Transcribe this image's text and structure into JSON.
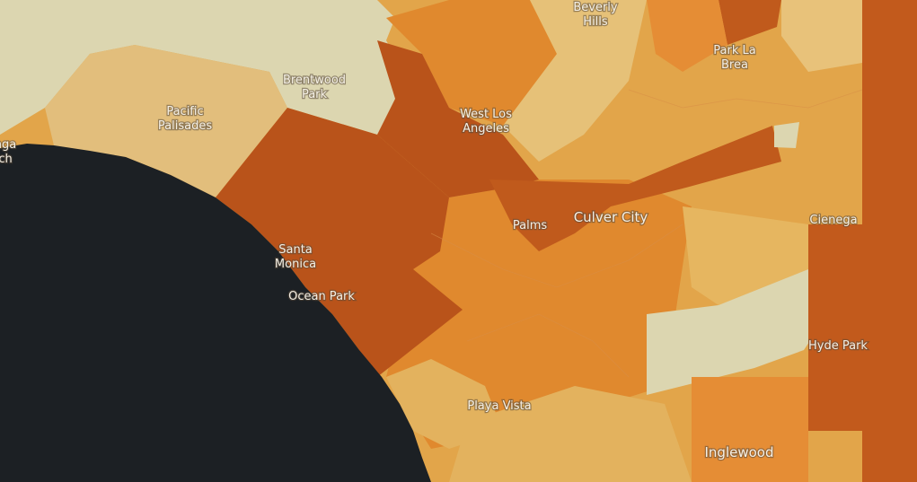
{
  "labels": [
    {
      "lines": [
        "Beverly",
        "Hills"
      ]
    },
    {
      "lines": [
        "Park La",
        "Brea"
      ]
    },
    {
      "lines": [
        "Brentwood",
        "Park"
      ]
    },
    {
      "lines": [
        "Pacific",
        "Palisades"
      ]
    },
    {
      "lines": [
        "West Los",
        "Angeles"
      ]
    },
    {
      "lines": [
        "Palms"
      ]
    },
    {
      "lines": [
        "Culver City"
      ]
    },
    {
      "lines": [
        "Cienega"
      ]
    },
    {
      "lines": [
        "Santa",
        "Monica"
      ]
    },
    {
      "lines": [
        "Ocean Park"
      ]
    },
    {
      "lines": [
        "Hyde Park"
      ]
    },
    {
      "lines": [
        "Playa Vista"
      ]
    },
    {
      "lines": [
        "Inglewood"
      ]
    },
    {
      "lines": [
        "nga",
        "ch"
      ]
    }
  ]
}
